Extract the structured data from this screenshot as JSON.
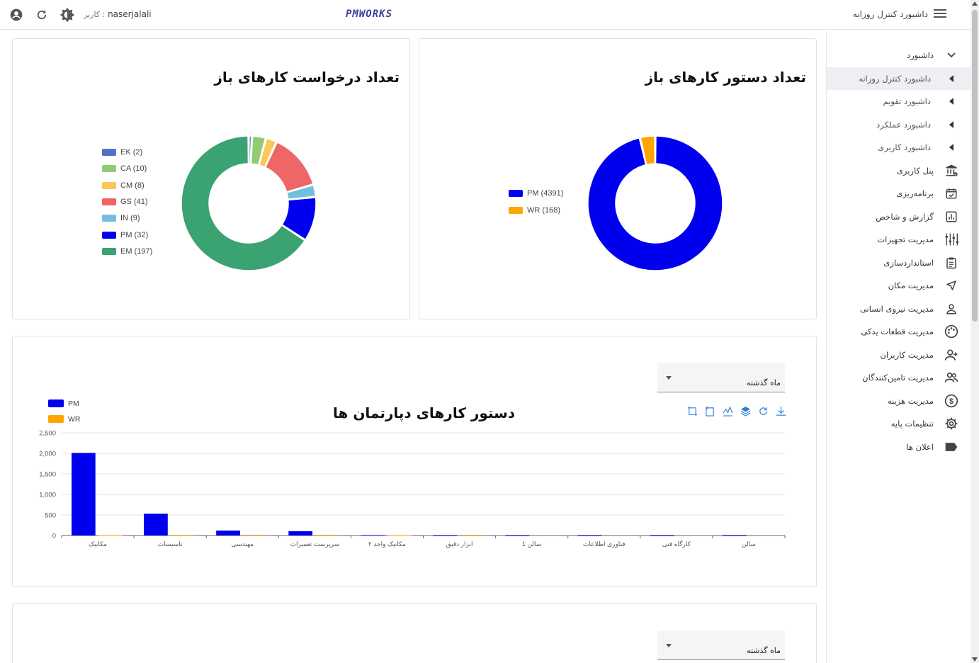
{
  "topbar": {
    "user_label": "کاربر :",
    "username": "naserjalali",
    "logo": "PMWORKS",
    "page_title": "داشبورد کنترل روزانه"
  },
  "sidebar": {
    "items": [
      {
        "label": "داشبورد",
        "icon": "chevron-down-icon",
        "type": "group"
      },
      {
        "label": "داشبورد کنترل روزانه",
        "icon": "caret-left-icon",
        "type": "sub",
        "active": true
      },
      {
        "label": "داشبورد تقویم",
        "icon": "caret-left-icon",
        "type": "sub"
      },
      {
        "label": "داشبورد عملکرد",
        "icon": "caret-left-icon",
        "type": "sub"
      },
      {
        "label": "داشبورد کاربری",
        "icon": "caret-left-icon",
        "type": "sub"
      },
      {
        "label": "پنل کاربری",
        "icon": "bank-icon"
      },
      {
        "label": "برنامه‌ریزی",
        "icon": "calendar-check-icon"
      },
      {
        "label": "گزارش و شاخص",
        "icon": "bar-chart-icon"
      },
      {
        "label": "مدیریت تجهیزات",
        "icon": "equalizer-icon"
      },
      {
        "label": "استانداردسازی",
        "icon": "clipboard-icon"
      },
      {
        "label": "مدیریت مکان",
        "icon": "location-icon"
      },
      {
        "label": "مدیریت نیروی انسانی",
        "icon": "person-icon"
      },
      {
        "label": "مدیریت قطعات یدکی",
        "icon": "palette-icon"
      },
      {
        "label": "مدیریت کاربران",
        "icon": "person-add-icon"
      },
      {
        "label": "مدیریت تامین‌کنندگان",
        "icon": "people-icon"
      },
      {
        "label": "مدیریت هزینه",
        "icon": "dollar-icon"
      },
      {
        "label": "تنظیمات پایه",
        "icon": "gear-icon"
      },
      {
        "label": "اعلان ها",
        "icon": "label-icon"
      }
    ]
  },
  "cards": {
    "work_requests": {
      "title": "تعداد درخواست کارهای باز"
    },
    "work_orders": {
      "title": "تعداد دستور کارهای باز"
    },
    "departments": {
      "title": "دستور کارهای دپارتمان ها",
      "period": "ماه گذشته"
    },
    "bottom": {
      "period": "ماه گذشته"
    }
  },
  "chart_data": [
    {
      "type": "pie",
      "title": "تعداد درخواست کارهای باز",
      "legend_position": "left",
      "slices": [
        {
          "name": "EK",
          "value": 2,
          "label": "EK (2)",
          "color": "#5470c6"
        },
        {
          "name": "CA",
          "value": 10,
          "label": "CA (10)",
          "color": "#91cc75"
        },
        {
          "name": "CM",
          "value": 8,
          "label": "CM (8)",
          "color": "#fac858"
        },
        {
          "name": "GS",
          "value": 41,
          "label": "GS (41)",
          "color": "#ee6666"
        },
        {
          "name": "IN",
          "value": 9,
          "label": "IN (9)",
          "color": "#73c0de"
        },
        {
          "name": "PM",
          "value": 32,
          "label": "PM (32)",
          "color": "#0000ee"
        },
        {
          "name": "EM",
          "value": 197,
          "label": "EM (197)",
          "color": "#3ba272"
        }
      ]
    },
    {
      "type": "pie",
      "title": "تعداد دستور کارهای باز",
      "legend_position": "left",
      "slices": [
        {
          "name": "PM",
          "value": 4391,
          "label": "PM (4391)",
          "color": "#0000ee"
        },
        {
          "name": "WR",
          "value": 168,
          "label": "WR (168)",
          "color": "#ffa500"
        }
      ]
    },
    {
      "type": "bar",
      "title": "دستور کارهای دپارتمان ها",
      "legend_position": "top-left",
      "categories": [
        "مکانیک",
        "تاسیسات",
        "مهندسی",
        "سرپرست تعمیرات",
        "مکانیک واحد ۲",
        "ابزار دقیق",
        "سالن 1",
        "فناوری اطلاعات",
        "کارگاه فنی",
        "سالن"
      ],
      "series": [
        {
          "name": "PM",
          "color": "#0000ee",
          "values": [
            2010,
            530,
            120,
            105,
            10,
            3,
            2,
            2,
            1,
            1
          ]
        },
        {
          "name": "WR",
          "color": "#ffa500",
          "values": [
            8,
            3,
            2,
            2,
            8,
            1,
            0,
            0,
            0,
            0
          ]
        }
      ],
      "ylim": [
        0,
        2500
      ],
      "yticks": [
        "0",
        "500",
        "1,000",
        "1,500",
        "2,000",
        "2,500"
      ],
      "grid": true
    }
  ]
}
